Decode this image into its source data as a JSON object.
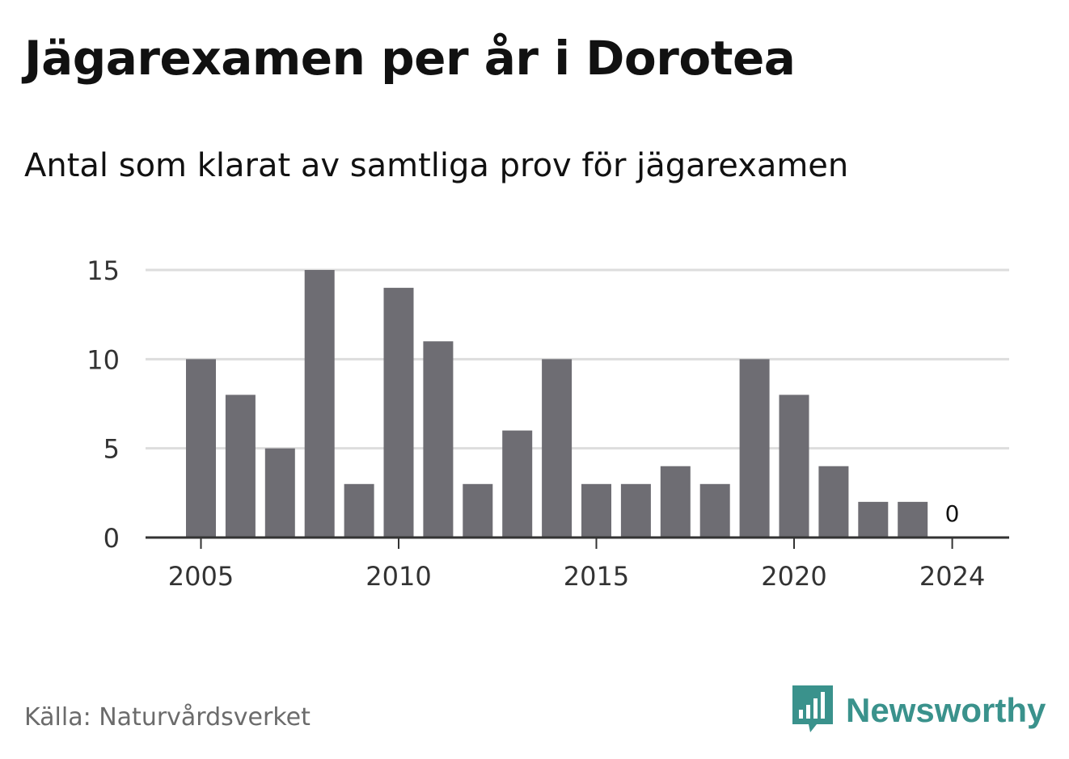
{
  "header": {
    "title": "Jägarexamen per år i Dorotea",
    "subtitle": "Antal som klarat av samtliga prov för jägarexamen"
  },
  "footer": {
    "source": "Källa: Naturvårdsverket",
    "brand_name": "Newsworthy",
    "brand_icon": "newsworthy-logo-icon"
  },
  "colors": {
    "bar": "#6e6d73",
    "grid": "#dddddd",
    "axis": "#333333",
    "tick_text": "#333333",
    "brand": "#3a928c"
  },
  "chart_data": {
    "type": "bar",
    "x": [
      2005,
      2006,
      2007,
      2008,
      2009,
      2010,
      2011,
      2012,
      2013,
      2014,
      2015,
      2016,
      2017,
      2018,
      2019,
      2020,
      2021,
      2022,
      2023,
      2024
    ],
    "values": [
      10,
      8,
      5,
      15,
      3,
      14,
      11,
      3,
      6,
      10,
      3,
      3,
      4,
      3,
      10,
      8,
      4,
      2,
      2,
      0
    ],
    "x_ticks": [
      "2005",
      "2010",
      "2015",
      "2020",
      "2024"
    ],
    "y_ticks": [
      "0",
      "5",
      "10",
      "15"
    ],
    "ylim": [
      0,
      15
    ],
    "grid": true,
    "data_labels": [
      {
        "x": 2024,
        "text": "0"
      }
    ],
    "title": "Jägarexamen per år i Dorotea",
    "subtitle": "Antal som klarat av samtliga prov för jägarexamen",
    "xlabel": "",
    "ylabel": ""
  }
}
